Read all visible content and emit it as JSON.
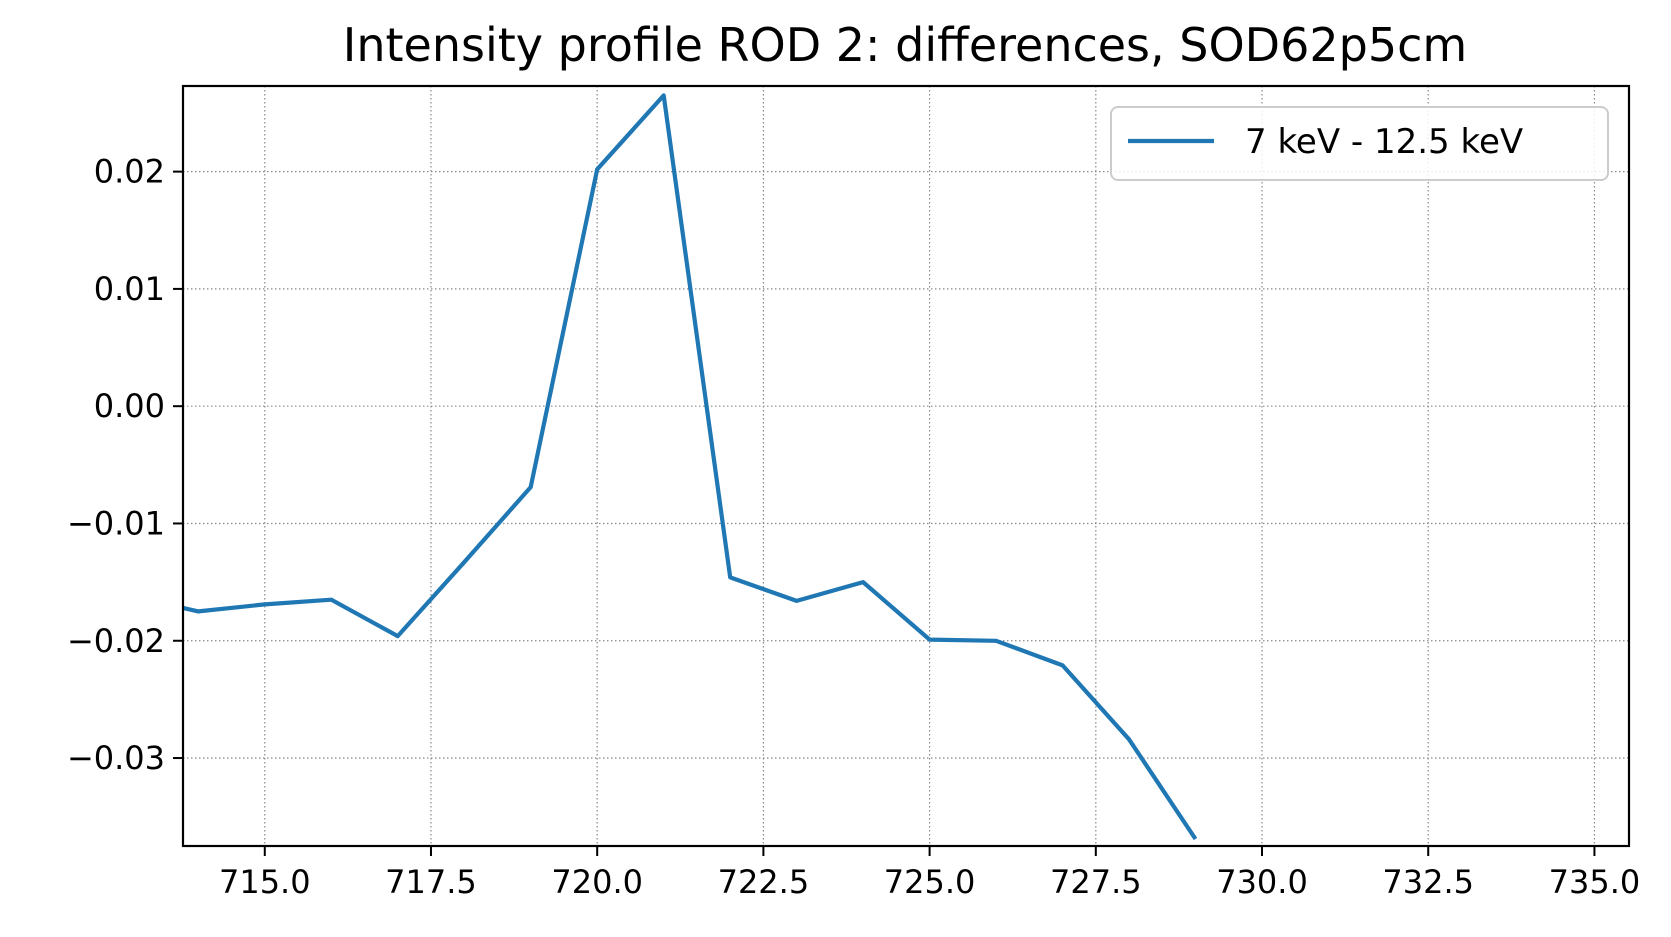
{
  "chart_data": {
    "type": "line",
    "title": "Intensity profile ROD 2: differences, SOD62p5cm",
    "xlabel": "",
    "ylabel": "",
    "xlim": [
      713.77,
      735.52
    ],
    "ylim": [
      -0.0375,
      0.0273
    ],
    "x_ticks": [
      715.0,
      717.5,
      720.0,
      722.5,
      725.0,
      727.5,
      730.0,
      732.5,
      735.0
    ],
    "x_tick_labels": [
      "715.0",
      "717.5",
      "720.0",
      "722.5",
      "725.0",
      "727.5",
      "730.0",
      "732.5",
      "735.0"
    ],
    "y_ticks": [
      0.02,
      0.01,
      0.0,
      -0.01,
      -0.02,
      -0.03
    ],
    "y_tick_labels": [
      "0.02",
      "0.01",
      "0.00",
      "−0.01",
      "−0.02",
      "−0.03"
    ],
    "grid": true,
    "grid_style": "dotted",
    "legend_position": "upper-right",
    "series": [
      {
        "name": "7 keV - 12.5 keV",
        "color": "#1f77b4",
        "x": [
          713.77,
          714,
          715,
          716,
          717,
          718,
          719,
          720,
          721,
          722,
          723,
          724,
          725,
          726,
          727,
          728,
          729
        ],
        "y": [
          -0.0172,
          -0.0175,
          -0.0169,
          -0.0165,
          -0.0196,
          -0.0133,
          -0.0069,
          0.0202,
          0.0265,
          -0.0146,
          -0.0166,
          -0.015,
          -0.0199,
          -0.02,
          -0.0221,
          -0.0284,
          -0.0369
        ]
      }
    ]
  }
}
